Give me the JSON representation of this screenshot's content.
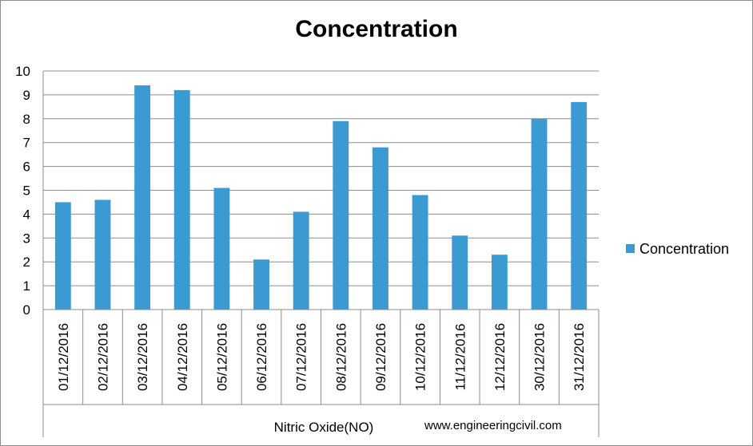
{
  "chart_data": {
    "type": "bar",
    "title": "Concentration",
    "categories": [
      "01/12/2016",
      "02/12/2016",
      "03/12/2016",
      "04/12/2016",
      "05/12/2016",
      "06/12/2016",
      "07/12/2016",
      "08/12/2016",
      "09/12/2016",
      "10/12/2016",
      "11/12/2016",
      "12/12/2016",
      "30/12/2016",
      "31/12/2016"
    ],
    "group_label": "Nitric Oxide(NO)",
    "series": [
      {
        "name": "Concentration",
        "values": [
          4.5,
          4.6,
          9.4,
          9.2,
          5.1,
          2.1,
          4.1,
          7.9,
          6.8,
          4.8,
          3.1,
          2.3,
          8.0,
          8.7
        ]
      }
    ],
    "ylim": [
      0,
      10
    ],
    "yticks": [
      "0",
      "1",
      "2",
      "3",
      "4",
      "5",
      "6",
      "7",
      "8",
      "9",
      "10"
    ],
    "grid": true,
    "legend_position": "right",
    "bar_color": "#3a9ad1",
    "watermark": "www.engineeringcivil.com"
  }
}
